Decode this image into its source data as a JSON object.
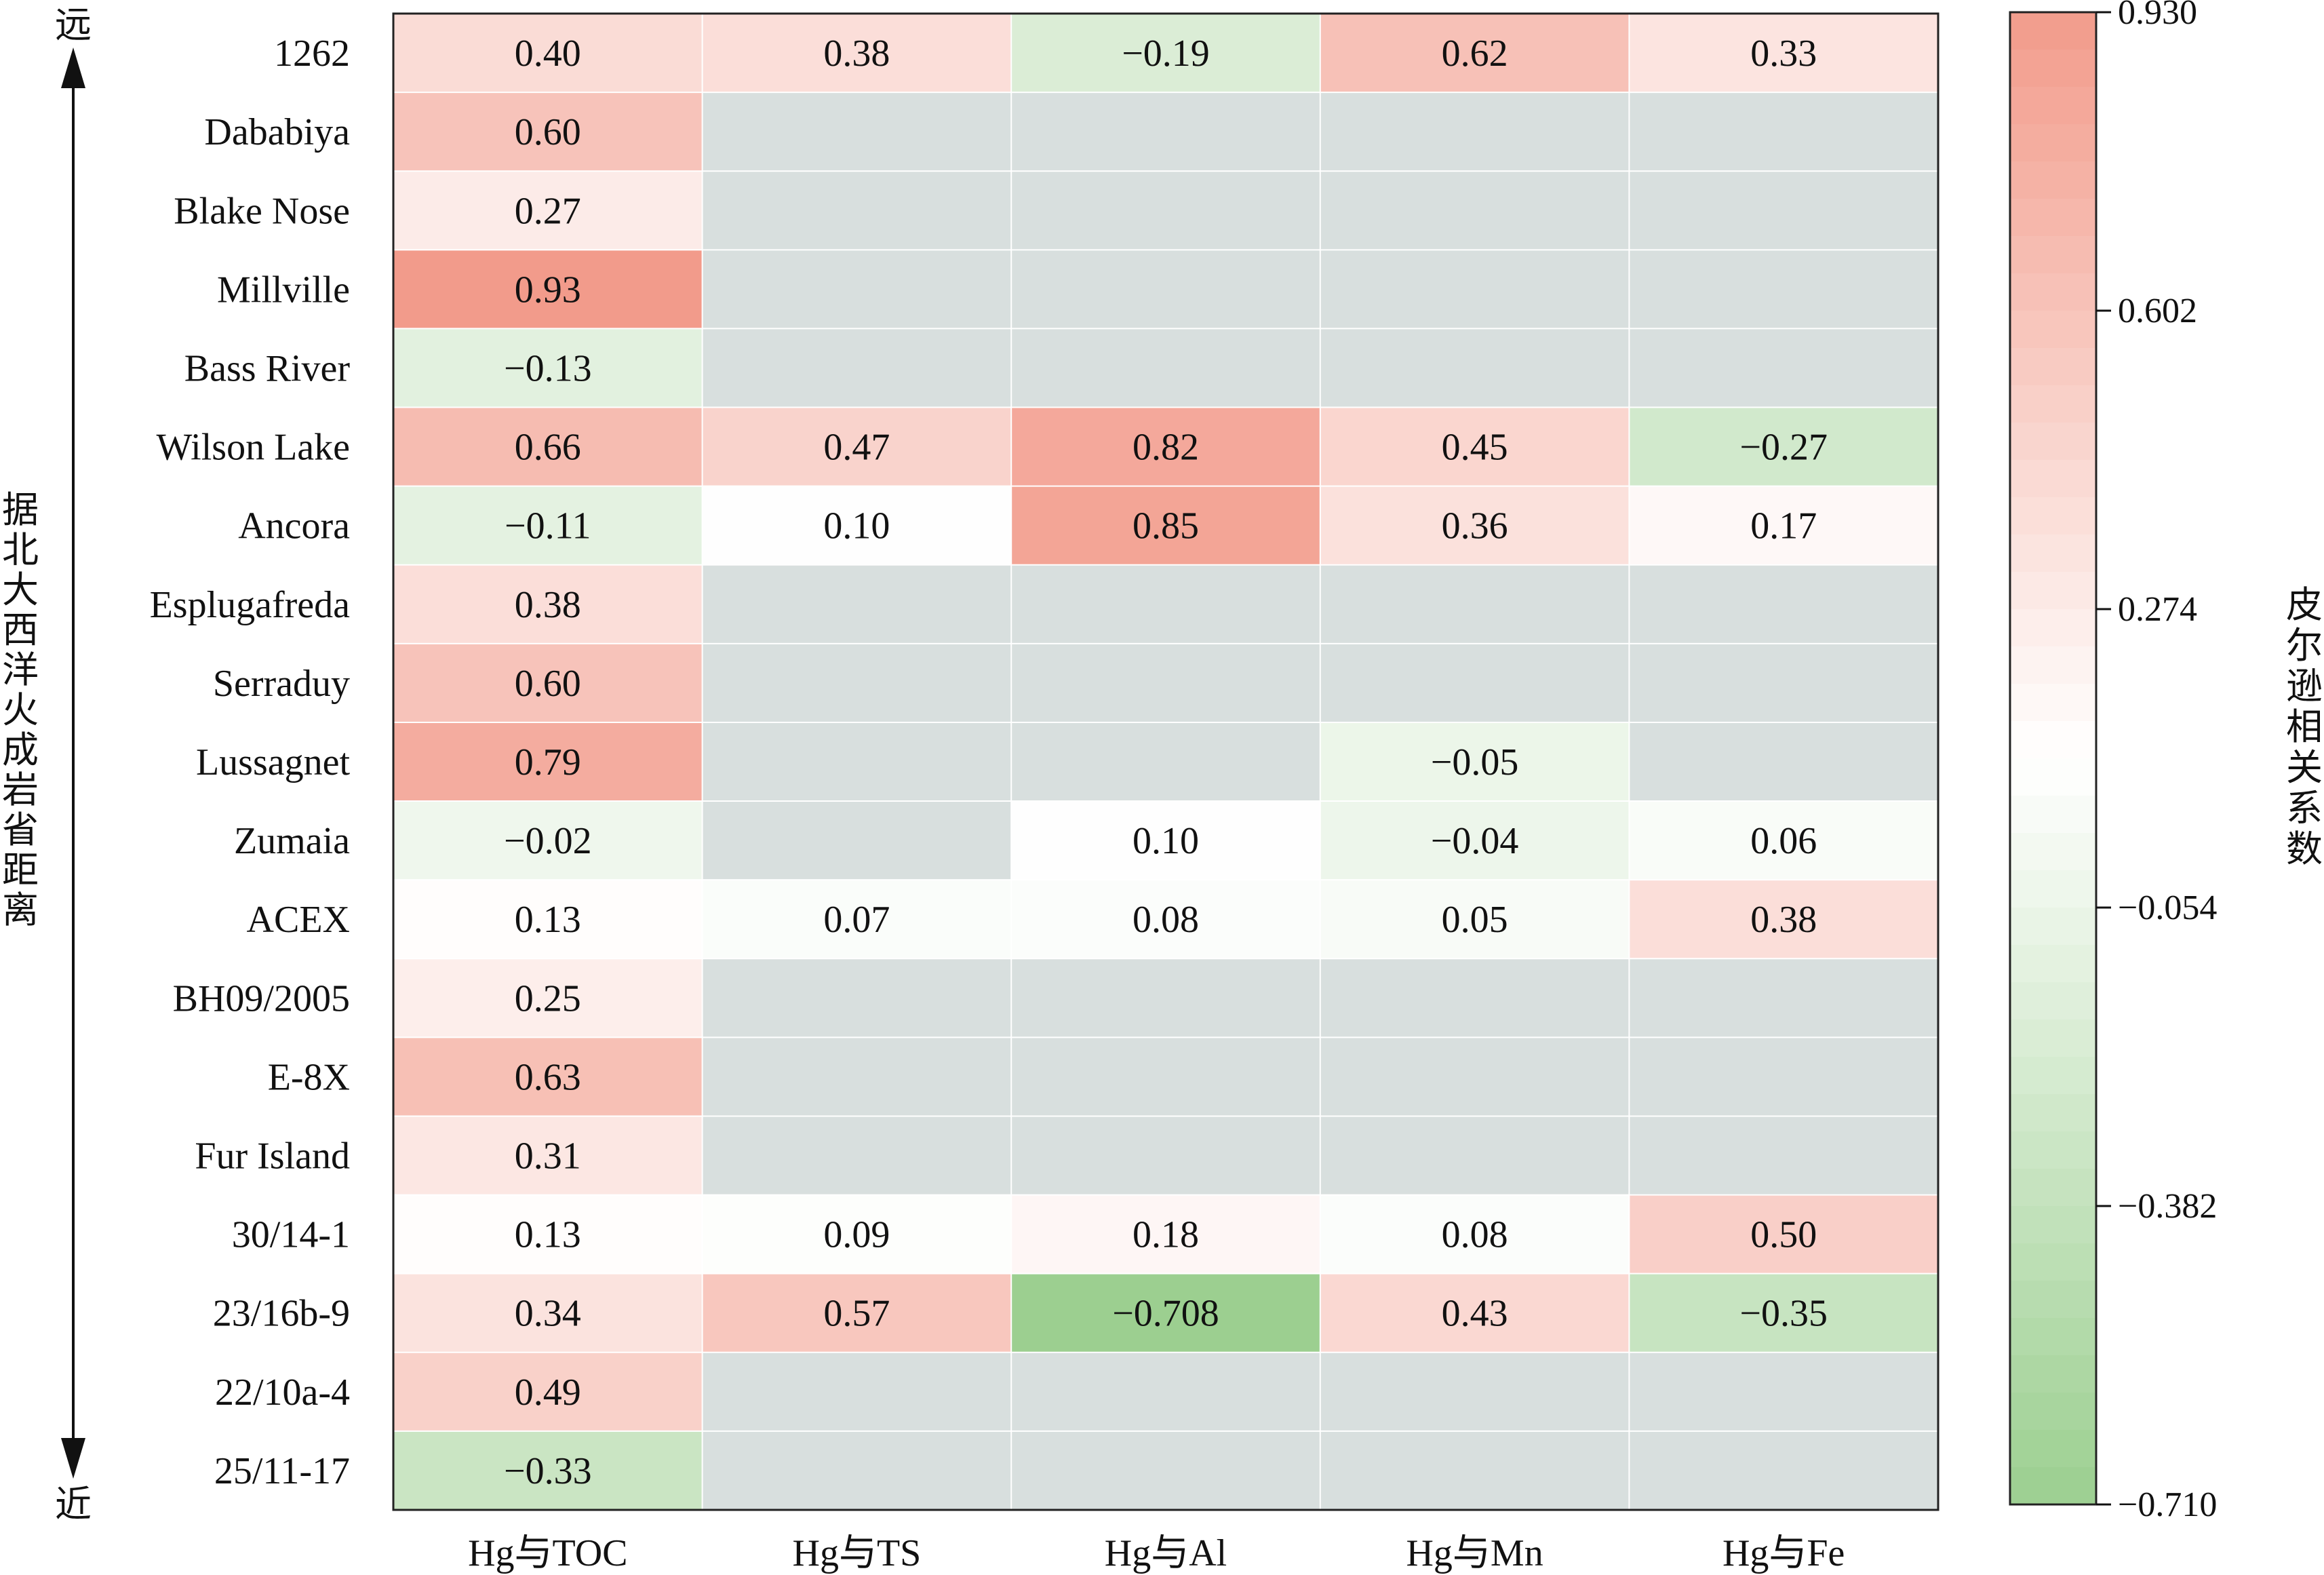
{
  "chart_data": {
    "type": "heatmap",
    "rows": [
      "1262",
      "Dababiya",
      "Blake Nose",
      "Millville",
      "Bass River",
      "Wilson Lake",
      "Ancora",
      "Esplugafreda",
      "Serraduy",
      "Lussagnet",
      "Zumaia",
      "ACEX",
      "BH09/2005",
      "E-8X",
      "Fur Island",
      "30/14-1",
      "23/16b-9",
      "22/10a-4",
      "25/11-17"
    ],
    "columns": [
      "Hg与TOC",
      "Hg与TS",
      "Hg与Al",
      "Hg与Mn",
      "Hg与Fe"
    ],
    "values": [
      [
        0.4,
        0.38,
        -0.19,
        0.62,
        0.33
      ],
      [
        0.6,
        null,
        null,
        null,
        null
      ],
      [
        0.27,
        null,
        null,
        null,
        null
      ],
      [
        0.93,
        null,
        null,
        null,
        null
      ],
      [
        -0.13,
        null,
        null,
        null,
        null
      ],
      [
        0.66,
        0.47,
        0.82,
        0.45,
        -0.27
      ],
      [
        -0.11,
        0.1,
        0.85,
        0.36,
        0.17
      ],
      [
        0.38,
        null,
        null,
        null,
        null
      ],
      [
        0.6,
        null,
        null,
        null,
        null
      ],
      [
        0.79,
        null,
        null,
        -0.05,
        null
      ],
      [
        -0.02,
        null,
        0.1,
        -0.04,
        0.06
      ],
      [
        0.13,
        0.07,
        0.08,
        0.05,
        0.38
      ],
      [
        0.25,
        null,
        null,
        null,
        null
      ],
      [
        0.63,
        null,
        null,
        null,
        null
      ],
      [
        0.31,
        null,
        null,
        null,
        null
      ],
      [
        0.13,
        0.09,
        0.18,
        0.08,
        0.5
      ],
      [
        0.34,
        0.57,
        -0.708,
        0.43,
        -0.35
      ],
      [
        0.49,
        null,
        null,
        null,
        null
      ],
      [
        -0.33,
        null,
        null,
        null,
        null
      ]
    ],
    "labels": [
      [
        "0.40",
        "0.38",
        "−0.19",
        "0.62",
        "0.33"
      ],
      [
        "0.60",
        "",
        "",
        "",
        ""
      ],
      [
        "0.27",
        "",
        "",
        "",
        ""
      ],
      [
        "0.93",
        "",
        "",
        "",
        ""
      ],
      [
        "−0.13",
        "",
        "",
        "",
        ""
      ],
      [
        "0.66",
        "0.47",
        "0.82",
        "0.45",
        "−0.27"
      ],
      [
        "−0.11",
        "0.10",
        "0.85",
        "0.36",
        "0.17"
      ],
      [
        "0.38",
        "",
        "",
        "",
        ""
      ],
      [
        "0.60",
        "",
        "",
        "",
        ""
      ],
      [
        "0.79",
        "",
        "",
        "−0.05",
        ""
      ],
      [
        "−0.02",
        "",
        "0.10",
        "−0.04",
        "0.06"
      ],
      [
        "0.13",
        "0.07",
        "0.08",
        "0.05",
        "0.38"
      ],
      [
        "0.25",
        "",
        "",
        "",
        ""
      ],
      [
        "0.63",
        "",
        "",
        "",
        ""
      ],
      [
        "0.31",
        "",
        "",
        "",
        ""
      ],
      [
        "0.13",
        "0.09",
        "0.18",
        "0.08",
        "0.50"
      ],
      [
        "0.34",
        "0.57",
        "−0.708",
        "0.43",
        "−0.35"
      ],
      [
        "0.49",
        "",
        "",
        "",
        ""
      ],
      [
        "−0.33",
        "",
        "",
        "",
        ""
      ]
    ],
    "missing_color": "#d8dfde",
    "colorbar": {
      "label": "皮尔逊相关系数",
      "range": [
        -0.71,
        0.93
      ],
      "ticks": [
        0.93,
        0.602,
        0.274,
        -0.054,
        -0.382,
        -0.71
      ],
      "tick_labels": [
        "0.930",
        "0.602",
        "0.274",
        "−0.054",
        "−0.382",
        "−0.710"
      ],
      "colors": {
        "high": "#f29b8b",
        "mid": "#ffffff",
        "low": "#9ccf90"
      },
      "mid_value": 0.11,
      "bands": 40
    },
    "y_axis": {
      "label": "据北大西洋火成岩省距离",
      "top_label": "远",
      "bottom_label": "近"
    }
  }
}
